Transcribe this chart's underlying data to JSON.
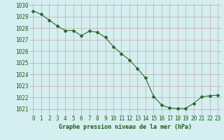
{
  "x": [
    0,
    1,
    2,
    3,
    4,
    5,
    6,
    7,
    8,
    9,
    10,
    11,
    12,
    13,
    14,
    15,
    16,
    17,
    18,
    19,
    20,
    21,
    22,
    23
  ],
  "y": [
    1029.5,
    1029.2,
    1028.7,
    1028.2,
    1027.8,
    1027.8,
    1027.35,
    1027.75,
    1027.65,
    1027.2,
    1026.4,
    1025.8,
    1025.25,
    1024.5,
    1023.7,
    1022.1,
    1021.35,
    1021.1,
    1021.05,
    1021.05,
    1021.5,
    1022.05,
    1022.15,
    1022.2
  ],
  "line_color": "#2d6a2d",
  "marker": "D",
  "marker_size": 2,
  "bg_color": "#d5eef0",
  "grid_color": "#c8a8a8",
  "text_color": "#1a5c1a",
  "xlabel": "Graphe pression niveau de la mer (hPa)",
  "ylim": [
    1020.5,
    1030.2
  ],
  "xlim": [
    -0.5,
    23.5
  ],
  "yticks": [
    1021,
    1022,
    1023,
    1024,
    1025,
    1026,
    1027,
    1028,
    1029,
    1030
  ],
  "xticks": [
    0,
    1,
    2,
    3,
    4,
    5,
    6,
    7,
    8,
    9,
    10,
    11,
    12,
    13,
    14,
    15,
    16,
    17,
    18,
    19,
    20,
    21,
    22,
    23
  ],
  "title_fontsize": 6,
  "tick_fontsize": 5.5
}
